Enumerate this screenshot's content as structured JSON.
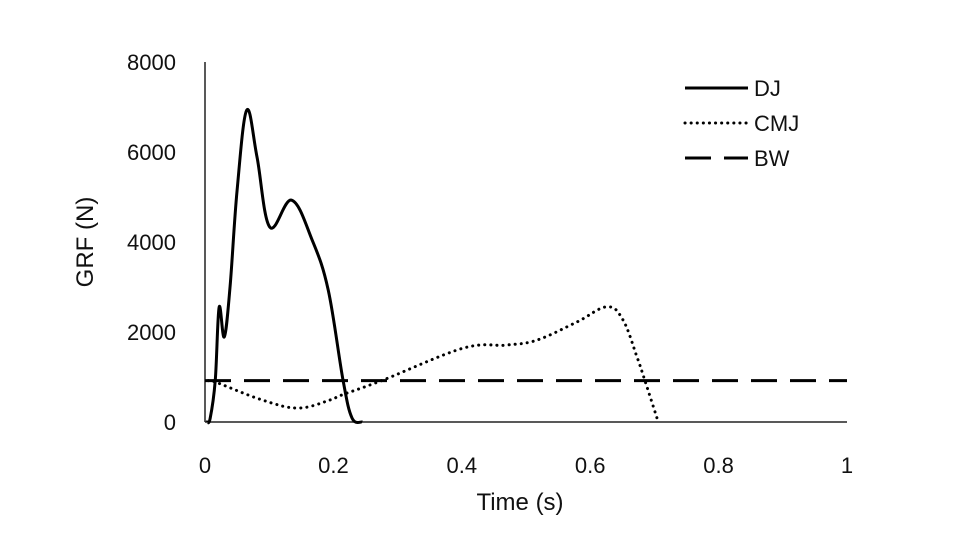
{
  "chart_data": {
    "type": "line",
    "title": "",
    "xlabel": "Time (s)",
    "ylabel": "GRF (N)",
    "xlim": [
      0,
      1
    ],
    "ylim": [
      0,
      8000
    ],
    "xticks": [
      0,
      0.2,
      0.4,
      0.6,
      0.8,
      1
    ],
    "xtick_labels": [
      "0",
      "0.2",
      "0.4",
      "0.6",
      "0.8",
      "1"
    ],
    "yticks": [
      0,
      2000,
      4000,
      6000,
      8000
    ],
    "ytick_labels": [
      "0",
      "2000",
      "4000",
      "6000",
      "8000"
    ],
    "grid": false,
    "legend_position": "top-right",
    "series": [
      {
        "name": "DJ",
        "style": "solid",
        "color": "#000000",
        "x": [
          0.003,
          0.008,
          0.016,
          0.022,
          0.03,
          0.039,
          0.05,
          0.065,
          0.081,
          0.101,
          0.135,
          0.167,
          0.192,
          0.215,
          0.229,
          0.245
        ],
        "y": [
          0,
          80,
          930,
          2550,
          1890,
          3000,
          5150,
          6930,
          5890,
          4330,
          4930,
          4040,
          2930,
          930,
          90,
          0
        ]
      },
      {
        "name": "CMJ",
        "style": "dotted",
        "color": "#000000",
        "x": [
          0.005,
          0.016,
          0.089,
          0.145,
          0.195,
          0.213,
          0.277,
          0.402,
          0.47,
          0.517,
          0.579,
          0.626,
          0.651,
          0.673,
          0.685,
          0.706
        ],
        "y": [
          920,
          890,
          490,
          310,
          490,
          600,
          930,
          1640,
          1710,
          1820,
          2220,
          2560,
          2270,
          1440,
          930,
          0
        ]
      },
      {
        "name": "BW",
        "style": "dashed",
        "color": "#000000",
        "x": [
          0,
          1
        ],
        "y": [
          920,
          920
        ]
      }
    ]
  }
}
